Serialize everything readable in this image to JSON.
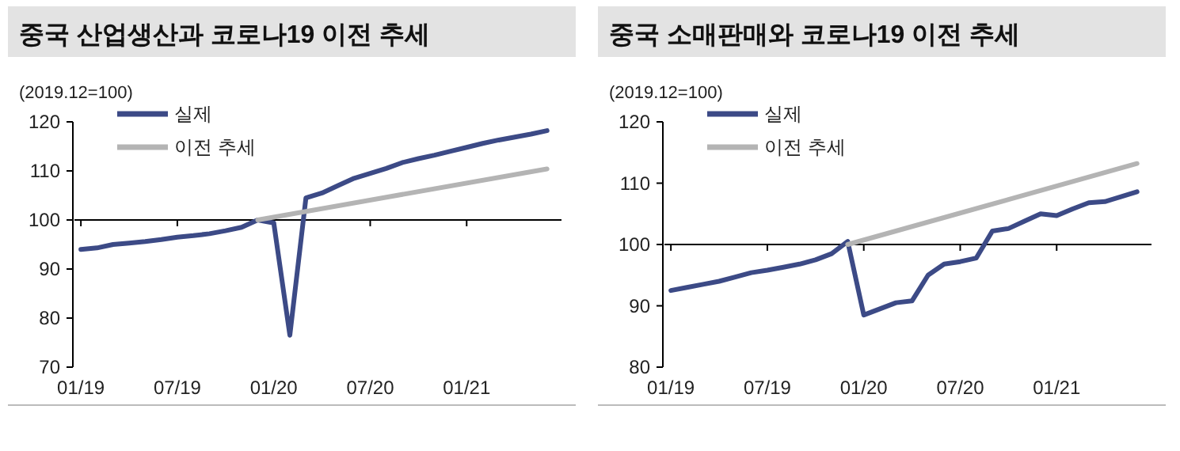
{
  "chart_data": [
    {
      "type": "line",
      "title": "중국 산업생산과 코로나19 이전 추세",
      "ylabel": "(2019.12=100)",
      "legend": "top left",
      "x": [
        "2019-01",
        "2019-02",
        "2019-03",
        "2019-04",
        "2019-05",
        "2019-06",
        "2019-07",
        "2019-08",
        "2019-09",
        "2019-10",
        "2019-11",
        "2019-12",
        "2020-01",
        "2020-02",
        "2020-03",
        "2020-04",
        "2020-05",
        "2020-06",
        "2020-07",
        "2020-08",
        "2020-09",
        "2020-10",
        "2020-11",
        "2020-12",
        "2021-01",
        "2021-02",
        "2021-03",
        "2021-04",
        "2021-05",
        "2021-06"
      ],
      "xlim": [
        "2018-12-16",
        "2021-06-28"
      ],
      "xticks": [
        {
          "value": "2019-01",
          "label": "01/19"
        },
        {
          "value": "2019-07",
          "label": "07/19"
        },
        {
          "value": "2020-01",
          "label": "01/20"
        },
        {
          "value": "2020-07",
          "label": "07/20"
        },
        {
          "value": "2021-01",
          "label": "01/21"
        }
      ],
      "ylim": [
        70,
        120
      ],
      "yticks": [
        70,
        80,
        90,
        100,
        110,
        120
      ],
      "ref_lines": [
        {
          "axis": "y",
          "value": 100,
          "color": "#000000"
        }
      ],
      "series": [
        {
          "name": "실제",
          "color": "#3c4a86",
          "values": [
            94.0,
            94.3,
            95.0,
            95.3,
            95.6,
            96.0,
            96.5,
            96.8,
            97.2,
            97.8,
            98.5,
            100.0,
            99.4,
            76.5,
            104.5,
            105.5,
            107.0,
            108.5,
            109.5,
            110.5,
            111.7,
            112.5,
            113.2,
            114.0,
            114.8,
            115.6,
            116.3,
            116.9,
            117.5,
            118.2
          ]
        },
        {
          "name": "이전 추세",
          "color": "#b4b4b4",
          "x": [
            "2019-12",
            "2021-06"
          ],
          "values": [
            100.0,
            110.4
          ]
        }
      ]
    },
    {
      "type": "line",
      "title": "중국 소매판매와 코로나19 이전 추세",
      "ylabel": "(2019.12=100)",
      "legend": "top left",
      "x": [
        "2019-01",
        "2019-02",
        "2019-03",
        "2019-04",
        "2019-05",
        "2019-06",
        "2019-07",
        "2019-08",
        "2019-09",
        "2019-10",
        "2019-11",
        "2019-12",
        "2020-01",
        "2020-02",
        "2020-03",
        "2020-04",
        "2020-05",
        "2020-06",
        "2020-07",
        "2020-08",
        "2020-09",
        "2020-10",
        "2020-11",
        "2020-12",
        "2021-01",
        "2021-02",
        "2021-03",
        "2021-04",
        "2021-05",
        "2021-06"
      ],
      "xlim": [
        "2018-12-16",
        "2021-06-28"
      ],
      "xticks": [
        {
          "value": "2019-01",
          "label": "01/19"
        },
        {
          "value": "2019-07",
          "label": "07/19"
        },
        {
          "value": "2020-01",
          "label": "01/20"
        },
        {
          "value": "2020-07",
          "label": "07/20"
        },
        {
          "value": "2021-01",
          "label": "01/21"
        }
      ],
      "ylim": [
        80,
        120
      ],
      "yticks": [
        80,
        90,
        100,
        110,
        120
      ],
      "ref_lines": [
        {
          "axis": "y",
          "value": 100,
          "color": "#000000"
        }
      ],
      "series": [
        {
          "name": "실제",
          "color": "#3c4a86",
          "values": [
            92.5,
            93.0,
            93.5,
            94.0,
            94.7,
            95.4,
            95.8,
            96.3,
            96.8,
            97.5,
            98.5,
            100.5,
            88.5,
            89.5,
            90.5,
            90.8,
            95.0,
            96.8,
            97.2,
            97.8,
            102.2,
            102.6,
            103.8,
            105.0,
            104.7,
            105.8,
            106.8,
            107.0,
            107.8,
            108.6
          ]
        },
        {
          "name": "이전 추세",
          "color": "#b4b4b4",
          "x": [
            "2019-12",
            "2021-06"
          ],
          "values": [
            100.0,
            113.2
          ]
        }
      ]
    }
  ]
}
